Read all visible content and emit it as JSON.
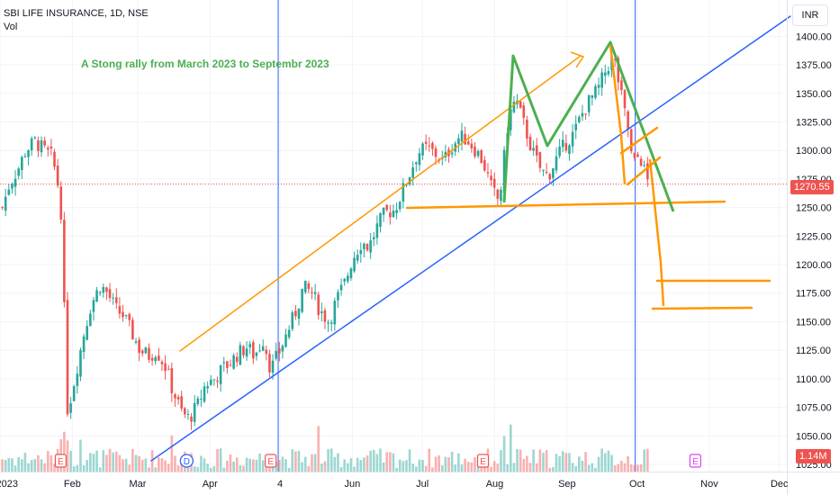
{
  "header": {
    "symbol_line": "SBI LIFE INSURANCE, 1D, NSE",
    "volume_label": "Vol"
  },
  "annotation": "A Stong rally from March 2023 to Septembr 2023",
  "currency_button": "INR",
  "colors": {
    "up": "#26a69a",
    "down": "#ef5350",
    "trend_line": "#2962ff",
    "channel": "#ff9800",
    "pattern": "#4caf50",
    "event": "#ef5350",
    "dividend": "#2962ff",
    "future_event": "#e040fb"
  },
  "chart_data": {
    "type": "candlestick",
    "price_axis_ticks": [
      "1400.00",
      "1375.00",
      "1350.00",
      "1325.00",
      "1300.00",
      "1275.00",
      "1250.00",
      "1225.00",
      "1200.00",
      "1175.00",
      "1150.00",
      "1125.00",
      "1100.00",
      "1075.00",
      "1050.00",
      "1025.00"
    ],
    "time_axis_ticks": [
      "2023",
      "Feb",
      "Mar",
      "Apr",
      "4",
      "Jun",
      "Jul",
      "Aug",
      "Sep",
      "Oct",
      "Nov",
      "Dec"
    ],
    "y_range": [
      1022,
      1410
    ],
    "last_price": {
      "value": 1270.55,
      "label": "1270.55"
    },
    "volume_last": {
      "label": "1.14M"
    },
    "event_markers": [
      {
        "label": "E",
        "type": "earnings",
        "date": "2023-01-27"
      },
      {
        "label": "D",
        "type": "dividend",
        "date": "2023-03-22"
      },
      {
        "label": "E",
        "type": "earnings",
        "date": "2023-04-27"
      },
      {
        "label": "E",
        "type": "earnings",
        "date": "2023-07-27"
      },
      {
        "label": "E",
        "type": "earnings",
        "date": "2023-10-26"
      }
    ],
    "close_path": [
      [
        "2023-01-02",
        1250
      ],
      [
        "2023-01-05",
        1270
      ],
      [
        "2023-01-09",
        1285
      ],
      [
        "2023-01-12",
        1300
      ],
      [
        "2023-01-16",
        1308
      ],
      [
        "2023-01-20",
        1300
      ],
      [
        "2023-01-23",
        1295
      ],
      [
        "2023-01-25",
        1280
      ],
      [
        "2023-01-27",
        1255
      ],
      [
        "2023-01-30",
        1070
      ],
      [
        "2023-02-02",
        1100
      ],
      [
        "2023-02-06",
        1140
      ],
      [
        "2023-02-09",
        1165
      ],
      [
        "2023-02-13",
        1182
      ],
      [
        "2023-02-16",
        1175
      ],
      [
        "2023-02-20",
        1160
      ],
      [
        "2023-02-23",
        1155
      ],
      [
        "2023-02-27",
        1138
      ],
      [
        "2023-03-02",
        1125
      ],
      [
        "2023-03-06",
        1120
      ],
      [
        "2023-03-09",
        1125
      ],
      [
        "2023-03-13",
        1110
      ],
      [
        "2023-03-16",
        1090
      ],
      [
        "2023-03-20",
        1070
      ],
      [
        "2023-03-23",
        1065
      ],
      [
        "2023-03-27",
        1078
      ],
      [
        "2023-03-30",
        1095
      ],
      [
        "2023-04-03",
        1100
      ],
      [
        "2023-04-06",
        1108
      ],
      [
        "2023-04-10",
        1115
      ],
      [
        "2023-04-13",
        1122
      ],
      [
        "2023-04-17",
        1128
      ],
      [
        "2023-04-20",
        1120
      ],
      [
        "2023-04-24",
        1135
      ],
      [
        "2023-04-27",
        1108
      ],
      [
        "2023-05-01",
        1125
      ],
      [
        "2023-05-04",
        1140
      ],
      [
        "2023-05-08",
        1160
      ],
      [
        "2023-05-11",
        1180
      ],
      [
        "2023-05-15",
        1175
      ],
      [
        "2023-05-18",
        1160
      ],
      [
        "2023-05-22",
        1150
      ],
      [
        "2023-05-25",
        1168
      ],
      [
        "2023-05-29",
        1185
      ],
      [
        "2023-06-01",
        1205
      ],
      [
        "2023-06-05",
        1220
      ],
      [
        "2023-06-08",
        1215
      ],
      [
        "2023-06-12",
        1235
      ],
      [
        "2023-06-15",
        1245
      ],
      [
        "2023-06-19",
        1248
      ],
      [
        "2023-06-22",
        1262
      ],
      [
        "2023-06-26",
        1282
      ],
      [
        "2023-06-29",
        1298
      ],
      [
        "2023-07-03",
        1302
      ],
      [
        "2023-07-06",
        1298
      ],
      [
        "2023-07-10",
        1290
      ],
      [
        "2023-07-13",
        1302
      ],
      [
        "2023-07-17",
        1312
      ],
      [
        "2023-07-20",
        1310
      ],
      [
        "2023-07-24",
        1300
      ],
      [
        "2023-07-27",
        1290
      ],
      [
        "2023-07-31",
        1265
      ],
      [
        "2023-08-03",
        1255
      ],
      [
        "2023-08-07",
        1330
      ],
      [
        "2023-08-10",
        1345
      ],
      [
        "2023-08-14",
        1320
      ],
      [
        "2023-08-17",
        1300
      ],
      [
        "2023-08-21",
        1282
      ],
      [
        "2023-08-24",
        1278
      ],
      [
        "2023-08-28",
        1295
      ],
      [
        "2023-08-31",
        1305
      ],
      [
        "2023-09-04",
        1315
      ],
      [
        "2023-09-07",
        1330
      ],
      [
        "2023-09-11",
        1345
      ],
      [
        "2023-09-14",
        1352
      ],
      [
        "2023-09-18",
        1372
      ],
      [
        "2023-09-21",
        1382
      ],
      [
        "2023-09-25",
        1340
      ],
      [
        "2023-09-28",
        1310
      ],
      [
        "2023-09-29",
        1285
      ],
      [
        "2023-10-02",
        1297
      ],
      [
        "2023-10-04",
        1283
      ],
      [
        "2023-10-06",
        1270.55
      ]
    ]
  }
}
